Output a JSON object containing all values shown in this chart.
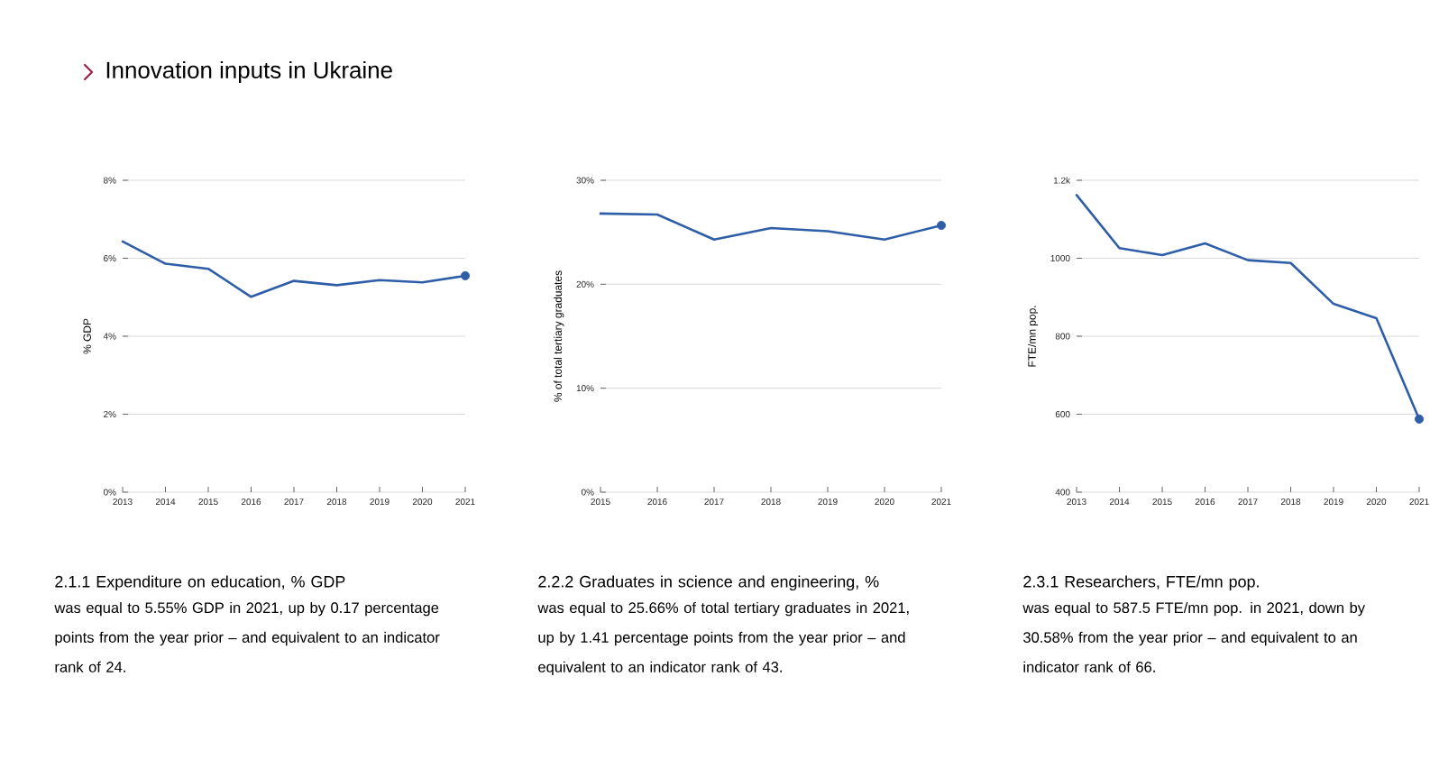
{
  "chart_data": [
    {
      "type": "other",
      "title": "Innovation inputs in Ukraine"
    },
    {
      "type": "line",
      "title": "2.1.1 Expenditure on education, % GDP",
      "ylabel": "% GDP",
      "grid": "y",
      "categories": [
        "2013",
        "2014",
        "2015",
        "2016",
        "2017",
        "2018",
        "2019",
        "2020",
        "2021"
      ],
      "ylim": [
        0,
        8
      ],
      "yticks": [
        {
          "value": 0,
          "label": "0%"
        },
        {
          "value": 2,
          "label": "2%"
        },
        {
          "value": 4,
          "label": "4%"
        },
        {
          "value": 6,
          "label": "6%"
        },
        {
          "value": 8,
          "label": "8%"
        }
      ],
      "series": [
        {
          "type": "line",
          "color": "#2e5ea8",
          "marker": "none",
          "values": [
            6.43,
            5.86,
            5.73,
            5.01,
            5.42,
            5.31,
            5.44,
            5.38,
            5.55
          ]
        },
        {
          "type": "scatter",
          "color": "#2e5ea8",
          "marker": "circle",
          "values": [
            null,
            null,
            null,
            null,
            null,
            null,
            null,
            null,
            5.55
          ]
        }
      ],
      "annotations": [
        "was equal to 5.55% GDP in 2021, up by 0.17 percentage points from the year prior – and equivalent to an indicator rank of 24."
      ]
    },
    {
      "type": "line",
      "title": "2.2.2 Graduates in science and engineering, %",
      "ylabel": "% of total tertiary graduates",
      "grid": "y",
      "categories": [
        "2015",
        "2016",
        "2017",
        "2018",
        "2019",
        "2020",
        "2021"
      ],
      "ylim": [
        0,
        30
      ],
      "yticks": [
        {
          "value": 0,
          "label": "0%"
        },
        {
          "value": 10,
          "label": "10%"
        },
        {
          "value": 20,
          "label": "20%"
        },
        {
          "value": 30,
          "label": "30%"
        }
      ],
      "series": [
        {
          "type": "line",
          "color": "#2e5ea8",
          "marker": "none",
          "values": [
            26.8,
            26.7,
            24.3,
            25.4,
            25.1,
            24.3,
            25.66
          ]
        },
        {
          "type": "scatter",
          "color": "#2e5ea8",
          "marker": "circle",
          "values": [
            null,
            null,
            null,
            null,
            null,
            null,
            25.66
          ]
        }
      ],
      "annotations": [
        "was equal to 25.66% of total tertiary graduates in 2021, up by 1.41 percentage points from the year prior – and equivalent to an indicator rank of 43."
      ]
    },
    {
      "type": "line",
      "title": "2.3.1 Researchers, FTE/mn pop.",
      "ylabel": "FTE/mn pop.",
      "grid": "y",
      "categories": [
        "2013",
        "2014",
        "2015",
        "2016",
        "2017",
        "2018",
        "2019",
        "2020",
        "2021"
      ],
      "ylim": [
        400,
        1200
      ],
      "yticks": [
        400,
        600,
        800,
        1000,
        {
          "value": 1200,
          "label": "1.2k"
        }
      ],
      "series": [
        {
          "type": "line",
          "color": "#2e5ea8",
          "marker": "none",
          "values": [
            1162,
            1026,
            1008,
            1038,
            995,
            988,
            883,
            846,
            587.5
          ]
        },
        {
          "type": "scatter",
          "color": "#2e5ea8",
          "marker": "circle",
          "values": [
            null,
            null,
            null,
            null,
            null,
            null,
            null,
            null,
            587.5
          ]
        }
      ],
      "annotations": [
        "was equal to 587.5 FTE/mn pop. in 2021, down by 30.58% from the year prior – and equivalent to an indicator rank of 66."
      ]
    }
  ]
}
